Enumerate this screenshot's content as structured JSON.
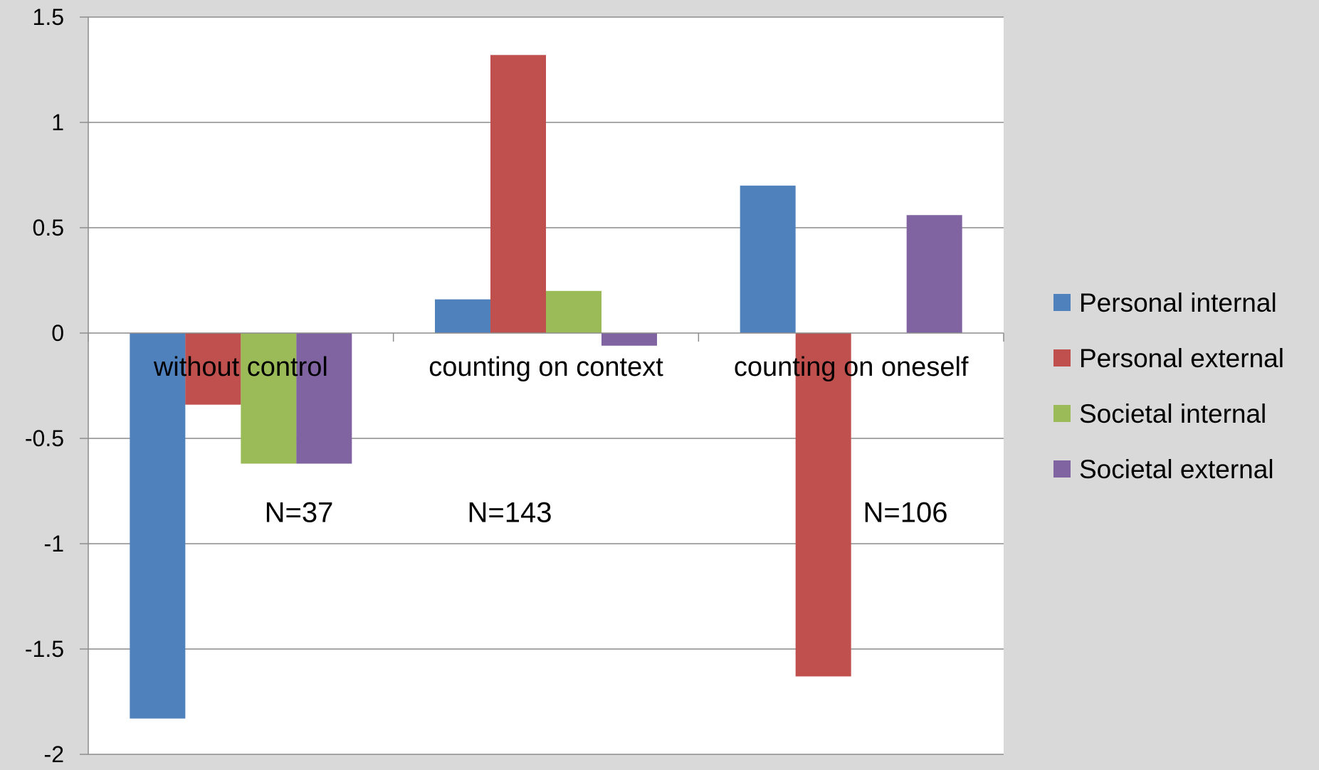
{
  "chart_data": {
    "type": "bar",
    "categories": [
      "without control",
      "counting on context",
      "counting on oneself"
    ],
    "series": [
      {
        "name": "Personal internal",
        "color": "#4f81bd",
        "values": [
          -1.83,
          0.16,
          0.7
        ]
      },
      {
        "name": "Personal external",
        "color": "#c0504d",
        "values": [
          -0.34,
          1.32,
          -1.63
        ]
      },
      {
        "name": "Societal internal",
        "color": "#9bbb59",
        "values": [
          -0.62,
          0.2,
          0.0
        ]
      },
      {
        "name": "Societal external",
        "color": "#8064a2",
        "values": [
          -0.62,
          -0.06,
          0.56
        ]
      }
    ],
    "ylim": [
      -2,
      1.5
    ],
    "yticks": [
      1.5,
      1,
      0.5,
      0,
      -0.5,
      -1,
      -1.5,
      -2
    ],
    "ytick_labels": [
      "1.5",
      "1",
      "0.5",
      "0",
      "-0.5",
      "-1",
      "-1.5",
      "-2"
    ],
    "grid": true,
    "legend_position": "right",
    "annotations": [
      {
        "text": "N=37",
        "category": 0,
        "y": -0.85
      },
      {
        "text": "N=143",
        "category": 1,
        "y": -0.85
      },
      {
        "text": "N=106",
        "category": 2,
        "y": -0.85
      }
    ],
    "title": "",
    "xlabel": "",
    "ylabel": ""
  }
}
